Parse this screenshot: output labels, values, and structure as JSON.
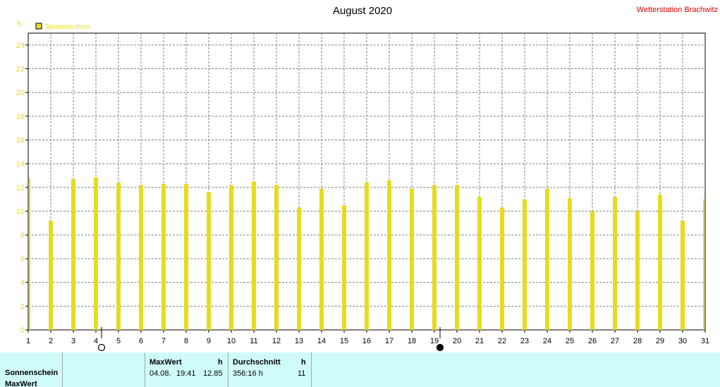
{
  "chart_data": {
    "type": "bar",
    "title": "August 2020",
    "station": "Wetterstation Brachwitz",
    "y_unit": "h",
    "legend": "Sonnenschein",
    "series_color": "#e6dc1e",
    "ylim": [
      0,
      25
    ],
    "yticks": [
      0,
      2,
      4,
      6,
      8,
      10,
      12,
      14,
      16,
      18,
      20,
      22,
      24
    ],
    "grid": true,
    "categories": [
      "1",
      "2",
      "3",
      "4",
      "5",
      "6",
      "7",
      "8",
      "9",
      "10",
      "11",
      "12",
      "13",
      "14",
      "15",
      "16",
      "17",
      "18",
      "19",
      "20",
      "21",
      "22",
      "23",
      "24",
      "25",
      "26",
      "27",
      "28",
      "29",
      "30",
      "31"
    ],
    "series": [
      {
        "name": "Sonnenschein",
        "values": [
          12.8,
          9.2,
          12.7,
          12.85,
          12.4,
          12.2,
          12.3,
          12.3,
          11.6,
          12.2,
          12.5,
          12.2,
          10.3,
          11.9,
          10.5,
          12.4,
          12.6,
          11.9,
          12.2,
          12.2,
          11.2,
          10.3,
          11.0,
          11.9,
          11.1,
          10.0,
          11.2,
          10.0,
          11.4,
          9.2,
          11.0
        ]
      }
    ],
    "moon_phases": [
      {
        "day": 4,
        "phase": "full",
        "symbol": "○"
      },
      {
        "day": 19,
        "phase": "new",
        "symbol": "●"
      }
    ]
  },
  "footer": {
    "row_labels": [
      "Sonnenschein",
      "MaxWert"
    ],
    "max_header": "MaxWert",
    "max_unit": "h",
    "max_date": "04.08.",
    "max_time": "19:41",
    "max_value": "12.85",
    "avg_header": "Durchschnitt",
    "avg_unit": "h",
    "avg_total": "356:16 h",
    "avg_value": "11"
  }
}
